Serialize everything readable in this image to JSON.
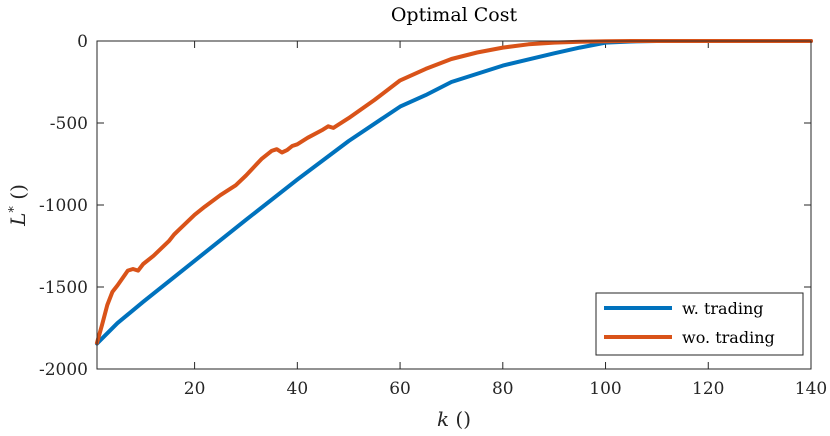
{
  "chart_data": {
    "type": "line",
    "title": "Optimal Cost",
    "xlabel": "k ()",
    "xlabel_var": "k",
    "xlabel_unit": " ()",
    "ylabel": "L* ()",
    "ylabel_var": "L",
    "ylabel_sup": "*",
    "ylabel_unit": " ()",
    "xlim": [
      1,
      140
    ],
    "ylim": [
      -2000,
      0
    ],
    "xticks": [
      20,
      40,
      60,
      80,
      100,
      120,
      140
    ],
    "yticks": [
      0,
      -500,
      -1000,
      -1500,
      -2000
    ],
    "legend_position": "bottom-right",
    "series": [
      {
        "name": "w. trading",
        "color": "#0072BD",
        "x": [
          1,
          5,
          10,
          20,
          30,
          40,
          50,
          60,
          65,
          70,
          80,
          90,
          95,
          100,
          105,
          110,
          120,
          130,
          140
        ],
        "y": [
          -1845,
          -1720,
          -1590,
          -1340,
          -1090,
          -845,
          -610,
          -400,
          -330,
          -250,
          -150,
          -75,
          -40,
          -10,
          -3,
          0,
          0,
          0,
          0
        ]
      },
      {
        "name": "wo. trading",
        "color": "#D95319",
        "x": [
          1,
          2,
          3,
          4,
          5,
          7,
          8,
          9,
          10,
          12,
          15,
          16,
          17,
          18,
          20,
          22,
          25,
          27,
          28,
          30,
          33,
          35,
          36,
          37,
          38,
          39,
          40,
          42,
          45,
          46,
          47,
          50,
          55,
          60,
          65,
          70,
          75,
          80,
          85,
          90,
          95,
          100,
          105,
          110,
          120,
          130,
          140
        ],
        "y": [
          -1840,
          -1730,
          -1610,
          -1530,
          -1490,
          -1400,
          -1390,
          -1400,
          -1360,
          -1310,
          -1220,
          -1180,
          -1150,
          -1120,
          -1060,
          -1010,
          -940,
          -900,
          -880,
          -820,
          -720,
          -670,
          -660,
          -680,
          -665,
          -640,
          -630,
          -590,
          -540,
          -520,
          -530,
          -470,
          -360,
          -240,
          -170,
          -110,
          -70,
          -40,
          -20,
          -10,
          -5,
          -2,
          0,
          0,
          0,
          0,
          0
        ]
      }
    ]
  }
}
